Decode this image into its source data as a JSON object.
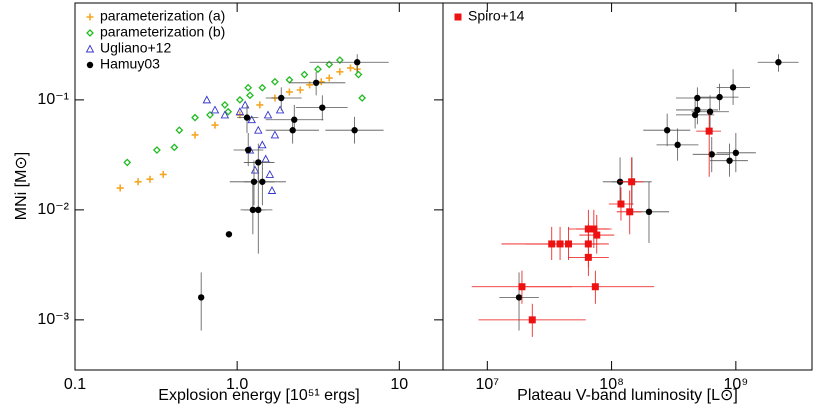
{
  "chart_data": [
    {
      "type": "scatter",
      "xlabel": "Explosion energy [10⁵¹ ergs]",
      "ylabel": "MNi [M⊙]",
      "xscale": "log",
      "yscale": "log",
      "xlim": [
        0.1,
        18.6
      ],
      "ylim": [
        0.00035,
        0.76
      ],
      "xticks": [
        0.1,
        {
          "value": 1,
          "label": "1.0"
        },
        10
      ],
      "yticks": [
        {
          "value": 0.001,
          "label": "10⁻³"
        },
        {
          "value": 0.01,
          "label": "10⁻²"
        },
        {
          "value": 0.1,
          "label": "10⁻¹"
        }
      ],
      "legend": "upper left",
      "series": [
        {
          "name": "parameterization (a)",
          "color": "#f5a623",
          "marker": "plus",
          "x": [
            0.19,
            0.245,
            0.29,
            0.35,
            0.55,
            0.73,
            1.04,
            1.38,
            1.71,
            2.1,
            2.45,
            2.8,
            3.3,
            3.7,
            4.3,
            5.0,
            5.5
          ],
          "values": [
            0.0158,
            0.018,
            0.019,
            0.021,
            0.048,
            0.059,
            0.073,
            0.09,
            0.104,
            0.118,
            0.123,
            0.137,
            0.146,
            0.158,
            0.18,
            0.195,
            0.19
          ]
        },
        {
          "name": "parameterization (b)",
          "color": "#22bb22",
          "marker": "diamond",
          "x": [
            0.21,
            0.32,
            0.41,
            0.44,
            0.55,
            0.68,
            0.84,
            1.04,
            1.2,
            1.43,
            1.71,
            2.1,
            2.6,
            3.15,
            3.7,
            4.3,
            5.6,
            5.9,
            1.17,
            0.88
          ],
          "values": [
            0.027,
            0.035,
            0.037,
            0.053,
            0.069,
            0.073,
            0.09,
            0.1,
            0.11,
            0.129,
            0.146,
            0.152,
            0.17,
            0.19,
            0.21,
            0.23,
            0.17,
            0.104,
            0.129,
            0.078
          ]
        },
        {
          "name": "Ugliano+12",
          "color": "#3333cc",
          "marker": "triangle",
          "x": [
            0.65,
            0.73,
            0.84,
            1.04,
            1.12,
            1.23,
            1.35,
            1.43,
            1.5,
            1.59,
            1.64,
            1.2,
            1.71,
            1.55,
            1.84,
            1.29
          ],
          "values": [
            0.1,
            0.081,
            0.073,
            0.078,
            0.09,
            0.066,
            0.053,
            0.039,
            0.029,
            0.021,
            0.015,
            0.035,
            0.048,
            0.073,
            0.081,
            0.023
          ]
        },
        {
          "name": "Hamuy03",
          "color": "#000000",
          "marker": "circle",
          "x": [
            5.5,
            3.07,
            2.25,
            1.87,
            1.15,
            3.35,
            2.2,
            5.3,
            1.17,
            1.35,
            1.43,
            1.27,
            1.25,
            1.35,
            0.89,
            0.6
          ],
          "values": [
            0.22,
            0.143,
            0.066,
            0.104,
            0.069,
            0.085,
            0.053,
            0.053,
            0.035,
            0.027,
            0.018,
            0.018,
            0.01,
            0.01,
            0.006,
            0.0016
          ],
          "x_range": [
            [
              2.8,
              8.6
            ],
            [
              2.1,
              4.65
            ],
            [
              1.5,
              3.4
            ],
            [
              1.5,
              2.5
            ],
            [
              1.0,
              1.35
            ],
            [
              2.3,
              4.8
            ],
            [
              1.5,
              3.2
            ],
            [
              3.5,
              8.0
            ],
            [
              0.95,
              1.45
            ],
            [
              1.1,
              1.7
            ],
            [
              1.1,
              2.0
            ],
            [
              0.9,
              1.7
            ],
            [
              1.05,
              1.5
            ],
            [
              1.1,
              1.65
            ],
            null,
            null
          ],
          "y_range": [
            [
              0.18,
              0.26
            ],
            [
              0.11,
              0.18
            ],
            [
              0.05,
              0.09
            ],
            [
              0.08,
              0.13
            ],
            [
              0.05,
              0.09
            ],
            [
              0.065,
              0.11
            ],
            [
              0.04,
              0.07
            ],
            [
              0.04,
              0.07
            ],
            [
              0.025,
              0.05
            ],
            [
              0.018,
              0.04
            ],
            [
              0.011,
              0.028
            ],
            [
              0.011,
              0.028
            ],
            [
              0.006,
              0.017
            ],
            [
              0.004,
              0.025
            ],
            null,
            [
              0.0008,
              0.0027
            ]
          ]
        }
      ]
    },
    {
      "type": "scatter",
      "xlabel": "Plateau V-band luminosity [L⊙]",
      "xscale": "log",
      "yscale": "log",
      "xlim": [
        4400000,
        4100000000
      ],
      "ylim": [
        0.00035,
        0.76
      ],
      "xticks": [
        {
          "value": 10000000,
          "label": "10⁷"
        },
        {
          "value": 100000000,
          "label": "10⁸"
        },
        {
          "value": 1000000000,
          "label": "10⁹"
        }
      ],
      "legend": "upper left",
      "series": [
        {
          "color": "#000000",
          "marker": "circle",
          "x": [
            2200000000,
            950000000,
            490000000,
            490000000,
            740000000,
            470000000,
            620000000,
            280000000,
            1000000000,
            640000000,
            890000000,
            340000000,
            117000000,
            146000000,
            200000000,
            18000000
          ],
          "values": [
            0.22,
            0.13,
            0.104,
            0.081,
            0.106,
            0.073,
            0.078,
            0.053,
            0.033,
            0.032,
            0.028,
            0.039,
            0.018,
            0.018,
            0.0096,
            0.0016
          ],
          "x_range": [
            [
              1500000000,
              3200000000
            ],
            [
              700000000,
              1300000000
            ],
            [
              330000000,
              720000000
            ],
            [
              330000000,
              720000000
            ],
            [
              520000000,
              1050000000
            ],
            [
              330000000,
              670000000
            ],
            [
              440000000,
              880000000
            ],
            [
              180000000,
              430000000
            ],
            [
              700000000,
              1450000000
            ],
            [
              450000000,
              900000000
            ],
            [
              620000000,
              1250000000
            ],
            [
              230000000,
              500000000
            ],
            [
              85000000,
              160000000
            ],
            [
              100000000,
              210000000
            ],
            [
              140000000,
              290000000
            ],
            [
              12500000,
              26000000
            ]
          ],
          "y_range": [
            [
              0.18,
              0.26
            ],
            [
              0.09,
              0.19
            ],
            [
              0.08,
              0.13
            ],
            [
              0.06,
              0.11
            ],
            [
              0.08,
              0.14
            ],
            [
              0.055,
              0.1
            ],
            [
              0.05,
              0.11
            ],
            [
              0.038,
              0.075
            ],
            [
              0.022,
              0.05
            ],
            [
              0.022,
              0.046
            ],
            [
              0.02,
              0.04
            ],
            [
              0.028,
              0.055
            ],
            [
              0.011,
              0.03
            ],
            [
              0.011,
              0.03
            ],
            [
              0.005,
              0.018
            ],
            [
              0.0008,
              0.0027
            ]
          ]
        },
        {
          "name": "Spiro+14",
          "color": "#ee1111",
          "marker": "square",
          "x": [
            610000000,
            145000000,
            119000000,
            140000000,
            33000000,
            38500000,
            45000000,
            65000000,
            72000000,
            76000000,
            65000000,
            65000000,
            74000000,
            19000000,
            23000000
          ],
          "values": [
            0.052,
            0.018,
            0.0113,
            0.0096,
            0.0049,
            0.0049,
            0.0049,
            0.0049,
            0.0067,
            0.0059,
            0.0067,
            0.0037,
            0.002,
            0.002,
            0.001
          ],
          "x_range": [
            [
              480000000,
              760000000
            ],
            [
              115000000,
              180000000
            ],
            [
              95000000,
              150000000
            ],
            [
              110000000,
              175000000
            ],
            [
              13000000,
              80000000
            ],
            [
              20000000,
              75000000
            ],
            [
              28000000,
              72000000
            ],
            [
              45000000,
              95000000
            ],
            [
              52000000,
              100000000
            ],
            [
              55000000,
              105000000
            ],
            [
              45000000,
              95000000
            ],
            [
              45000000,
              95000000
            ],
            [
              20000000,
              220000000
            ],
            [
              7500000,
              48000000
            ],
            [
              8500000,
              62000000
            ]
          ],
          "y_range": [
            [
              0.02,
              0.075
            ],
            [
              0.01,
              0.03
            ],
            [
              0.008,
              0.016
            ],
            [
              0.006,
              0.015
            ],
            [
              0.0035,
              0.007
            ],
            [
              0.0035,
              0.007
            ],
            [
              0.0035,
              0.007
            ],
            [
              0.003,
              0.0075
            ],
            [
              0.0045,
              0.01
            ],
            [
              0.004,
              0.009
            ],
            [
              0.0045,
              0.01
            ],
            [
              0.0025,
              0.0055
            ],
            [
              0.0014,
              0.0028
            ],
            [
              0.0014,
              0.0028
            ],
            [
              0.0007,
              0.0014
            ]
          ]
        }
      ]
    }
  ]
}
